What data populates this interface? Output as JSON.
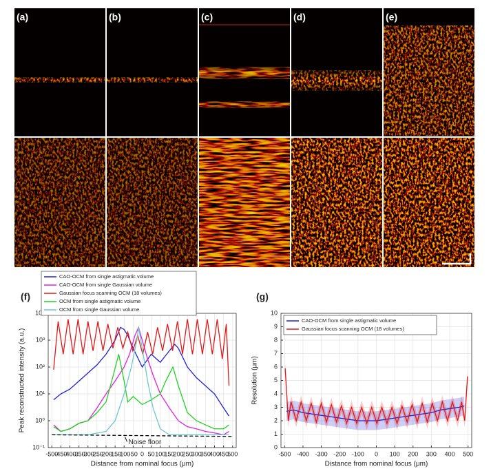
{
  "image_panels": {
    "labels": [
      "(a)",
      "(b)",
      "(c)",
      "(d)",
      "(e)"
    ]
  },
  "chart_data": [
    {
      "type": "line",
      "panel_label": "(f)",
      "log_y": true,
      "grid": true,
      "legend": "above",
      "x_label": "Distance from nominal focus (μm)",
      "y_label": "Peak reconstructed intensity (a.u.)",
      "xlim": [
        -520,
        520
      ],
      "xticks": [
        -500,
        -450,
        -400,
        -350,
        -300,
        -250,
        -200,
        -150,
        -100,
        -50,
        0,
        50,
        100,
        150,
        200,
        250,
        300,
        350,
        400,
        450,
        500
      ],
      "ylim": [
        0.1,
        10000
      ],
      "yticks": [
        {
          "value": 0.1,
          "label": "10⁻¹"
        },
        {
          "value": 1,
          "label": "10⁰"
        },
        {
          "value": 10,
          "label": "10¹"
        },
        {
          "value": 100,
          "label": "10²"
        },
        {
          "value": 1000,
          "label": "10³"
        },
        {
          "value": 10000,
          "label": "10⁴"
        }
      ],
      "series": [
        {
          "name": "CAO-OCM from single astigmatic volume",
          "color": "#1f1fd6",
          "x": [
            -490,
            -450,
            -400,
            -350,
            -300,
            -250,
            -200,
            -150,
            -120,
            -100,
            -80,
            -50,
            0,
            50,
            100,
            150,
            180,
            200,
            250,
            300,
            350,
            400,
            450,
            480
          ],
          "values": [
            6,
            10,
            15,
            30,
            60,
            120,
            300,
            1000,
            3000,
            2500,
            1500,
            500,
            100,
            300,
            150,
            400,
            700,
            500,
            100,
            40,
            20,
            10,
            3,
            1.5
          ]
        },
        {
          "name": "CAO-OCM from single Gaussian volume",
          "color": "#e020e0",
          "x": [
            -490,
            -450,
            -400,
            -350,
            -300,
            -250,
            -200,
            -150,
            -100,
            -70,
            -40,
            -20,
            0,
            30,
            60,
            100,
            150,
            200,
            250,
            300,
            350,
            400,
            450,
            480
          ],
          "values": [
            0.7,
            0.4,
            0.5,
            0.8,
            1,
            3,
            10,
            30,
            100,
            300,
            1500,
            3000,
            1000,
            200,
            50,
            10,
            3,
            1,
            0.6,
            0.5,
            0.4,
            0.35,
            0.3,
            0.4
          ]
        },
        {
          "name": "Gaussian focus scanning OCM (18 volumes)",
          "color": "#e01818",
          "x": [
            -490,
            -465,
            -437,
            -410,
            -382,
            -355,
            -327,
            -300,
            -272,
            -245,
            -217,
            -190,
            -162,
            -135,
            -107,
            -80,
            -52,
            -25,
            3,
            30,
            58,
            85,
            113,
            140,
            168,
            195,
            223,
            250,
            278,
            305,
            333,
            360,
            388,
            415,
            443,
            465,
            480
          ],
          "values": [
            80,
            5000,
            300,
            6000,
            300,
            6000,
            300,
            5000,
            400,
            5000,
            400,
            4000,
            500,
            3000,
            500,
            2000,
            400,
            1500,
            300,
            2000,
            300,
            3000,
            400,
            4000,
            400,
            5000,
            300,
            6000,
            300,
            6000,
            300,
            6000,
            300,
            6000,
            200,
            4000,
            20
          ]
        },
        {
          "name": "OCM from single astigmatic volume",
          "color": "#20d020",
          "x": [
            -490,
            -450,
            -400,
            -350,
            -300,
            -250,
            -200,
            -160,
            -130,
            -100,
            -80,
            -50,
            0,
            50,
            100,
            130,
            170,
            200,
            250,
            300,
            350,
            400,
            450,
            480
          ],
          "values": [
            0.6,
            0.4,
            0.5,
            0.8,
            1,
            2,
            5,
            50,
            300,
            30,
            5,
            8,
            4,
            6,
            10,
            30,
            100,
            20,
            2,
            1,
            0.7,
            0.5,
            0.5,
            0.7
          ]
        },
        {
          "name": "OCM from single Gaussian volume",
          "color": "#6cc8c8",
          "x": [
            -490,
            -400,
            -300,
            -200,
            -150,
            -100,
            -60,
            -30,
            -20,
            0,
            30,
            60,
            100,
            150,
            200,
            300,
            400,
            480
          ],
          "values": [
            0.3,
            0.3,
            0.3,
            0.4,
            1,
            10,
            100,
            1000,
            3000,
            500,
            30,
            3,
            0.5,
            0.3,
            0.3,
            0.3,
            0.3,
            0.3
          ]
        }
      ],
      "noise_floor": {
        "label": "Noise floor",
        "x": [
          -500,
          500
        ],
        "values": [
          0.3,
          0.26
        ]
      }
    },
    {
      "type": "line",
      "panel_label": "(g)",
      "log_y": false,
      "grid": true,
      "legend": "upper left",
      "x_label": "Distance from nominal focus (μm)",
      "y_label": "Resolution (μm)",
      "xlim": [
        -520,
        520
      ],
      "xticks": [
        -500,
        -400,
        -300,
        -200,
        -100,
        0,
        100,
        200,
        300,
        400,
        500
      ],
      "ylim": [
        0,
        10
      ],
      "yticks": [
        0,
        1,
        2,
        3,
        4,
        5,
        6,
        7,
        8,
        9,
        10
      ],
      "series": [
        {
          "name": "CAO-OCM from single astigmatic volume",
          "color": "#1f1fd6",
          "error": 0.7,
          "x": [
            -490,
            -450,
            -400,
            -350,
            -300,
            -250,
            -200,
            -150,
            -100,
            -50,
            0,
            50,
            100,
            150,
            200,
            250,
            300,
            350,
            400,
            450,
            480
          ],
          "values": [
            2.7,
            2.8,
            2.6,
            2.5,
            2.4,
            2.3,
            2.2,
            2.1,
            2.0,
            2.0,
            2.0,
            2.1,
            2.2,
            2.3,
            2.4,
            2.5,
            2.6,
            2.8,
            2.9,
            3.0,
            3.1
          ]
        },
        {
          "name": "Gaussian focus scanning OCM (18 volumes)",
          "color": "#e01818",
          "error": 0.5,
          "x": [
            -497,
            -480,
            -465,
            -437,
            -410,
            -382,
            -355,
            -327,
            -300,
            -272,
            -245,
            -217,
            -190,
            -162,
            -135,
            -107,
            -80,
            -52,
            -25,
            3,
            30,
            58,
            85,
            113,
            140,
            168,
            195,
            223,
            250,
            278,
            305,
            333,
            360,
            388,
            415,
            443,
            465,
            482,
            497
          ],
          "values": [
            5.9,
            2.0,
            3.4,
            2.0,
            3.4,
            2.0,
            3.3,
            1.9,
            3.3,
            1.9,
            3.2,
            1.9,
            3.1,
            1.8,
            3.0,
            1.8,
            3.0,
            1.8,
            3.0,
            1.8,
            3.0,
            1.8,
            3.0,
            1.8,
            3.1,
            1.9,
            3.2,
            1.9,
            3.3,
            1.9,
            3.3,
            2.0,
            3.4,
            2.0,
            3.4,
            2.0,
            3.4,
            2.0,
            5.3
          ]
        }
      ]
    }
  ]
}
